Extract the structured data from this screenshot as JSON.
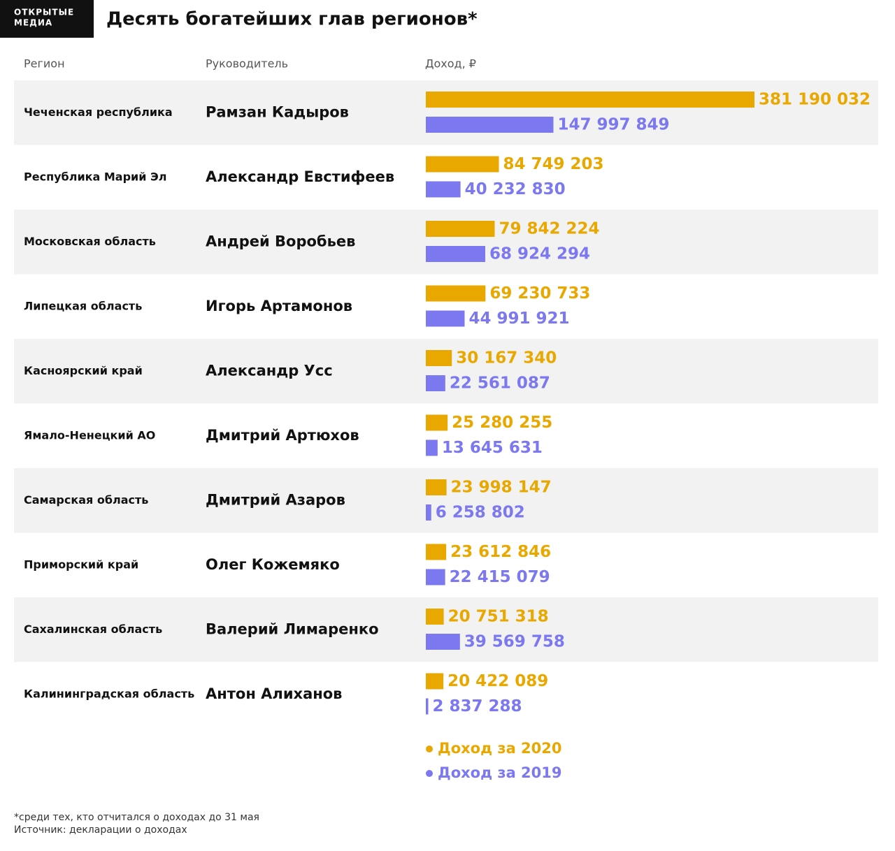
{
  "logo": [
    "ОТКРЫТЫЕ",
    "МЕДИА"
  ],
  "chart_data": {
    "type": "bar",
    "title": "Десять богатейших глав регионов*",
    "columns": [
      "Регион",
      "Руководитель",
      "Доход, ₽"
    ],
    "categories": [
      "Чеченская республика",
      "Республика Марий Эл",
      "Московская область",
      "Липецкая область",
      "Касноярский край",
      "Ямало-Ненецкий АО",
      "Самарская область",
      "Приморский край",
      "Сахалинская область",
      "Калининградская область"
    ],
    "leaders": [
      "Рамзан Кадыров",
      "Александр Евстифеев",
      "Андрей Воробьев",
      "Игорь Артамонов",
      "Александр Усс",
      "Дмитрий Артюхов",
      "Дмитрий Азаров",
      "Олег Кожемяко",
      "Валерий Лимаренко",
      "Антон Алиханов"
    ],
    "series": [
      {
        "name": "Доход за 2020",
        "color": "#e8a800",
        "values": [
          381190032,
          84749203,
          79842224,
          69230733,
          30167340,
          25280255,
          23998147,
          23612846,
          20751318,
          20422089
        ],
        "value_labels": [
          "381 190 032",
          "84 749 203",
          "79 842 224",
          "69 230 733",
          "30 167 340",
          "25 280 255",
          "23 998 147",
          "23 612 846",
          "20 751 318",
          "20 422 089"
        ]
      },
      {
        "name": "Доход за 2019",
        "color": "#7b78f0",
        "values": [
          147997849,
          40232830,
          68924294,
          44991921,
          22561087,
          13645631,
          6258802,
          22415079,
          39569758,
          2837288
        ],
        "value_labels": [
          "147 997 849",
          "40 232 830",
          "68 924 294",
          "44 991 921",
          "22 561 087",
          "13 645 631",
          "6 258 802",
          "22 415 079",
          "39 569 758",
          "2 837 288"
        ]
      }
    ]
  },
  "notes": [
    "*среди тех, кто отчитался о доходах до 31 мая",
    "Источник: декларации о доходах"
  ]
}
